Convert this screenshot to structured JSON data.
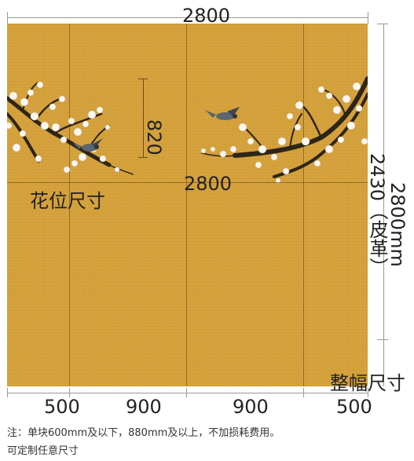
{
  "top_width_label": "2800",
  "middle_width_label": "2800",
  "flower_height_label": "820",
  "flower_size_label": "花位尺寸",
  "height_label": "2430（皮革）",
  "height_mm_label": "2800mm",
  "whole_size_label": "整幅尺寸",
  "panel_widths": [
    "500",
    "900",
    "900",
    "500"
  ],
  "note_line1": "注：单块600mm及以下，880mm及以上，不加损耗费用。",
  "note_line2": "可定制任意尺寸",
  "colors": {
    "panel": "#d4a039",
    "seam": "#7a5a22",
    "branch": "#2e2418",
    "blossom": "#fbf7ef",
    "bird": "#5b6670"
  }
}
